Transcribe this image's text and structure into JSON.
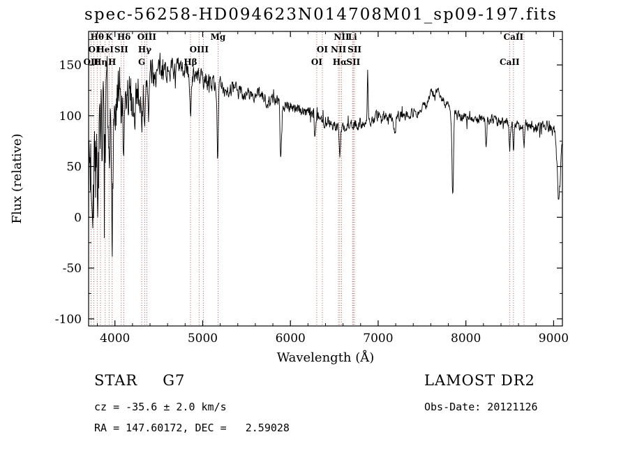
{
  "chart_data": {
    "type": "line",
    "title": "spec-56258-HD094623N014708M01_sp09-197.fits",
    "xlabel": "Wavelength (Å)",
    "ylabel": "Flux (relative)",
    "xlim": [
      3700,
      9100
    ],
    "ylim": [
      -107,
      183
    ],
    "x_ticks": [
      4000,
      5000,
      6000,
      7000,
      8000,
      9000
    ],
    "y_ticks": [
      -100,
      -50,
      0,
      50,
      100,
      150
    ],
    "grid": false,
    "legend": null,
    "colors": {
      "spectrum": "#000000",
      "feature_lines": "#a14a4a",
      "axes": "#000000",
      "text": "#000000",
      "background": "#ffffff"
    },
    "spectral_lines": [
      {
        "wavelength": 3727,
        "label": "OII",
        "row": 3
      },
      {
        "wavelength": 3760,
        "label": "OI",
        "row": 2
      },
      {
        "wavelength": 3798,
        "label": "Hθ",
        "row": 1
      },
      {
        "wavelength": 3835,
        "label": "Hη",
        "row": 3
      },
      {
        "wavelength": 3889,
        "label": "HeI",
        "row": 2
      },
      {
        "wavelength": 3933,
        "label": "K",
        "row": 1
      },
      {
        "wavelength": 3968,
        "label": "H",
        "row": 3
      },
      {
        "wavelength": 4072,
        "label": "SII",
        "row": 2
      },
      {
        "wavelength": 4102,
        "label": "Hδ",
        "row": 1
      },
      {
        "wavelength": 4305,
        "label": "G",
        "row": 3
      },
      {
        "wavelength": 4340,
        "label": "Hγ",
        "row": 2
      },
      {
        "wavelength": 4363,
        "label": "OIII",
        "row": 1
      },
      {
        "wavelength": 4861,
        "label": "Hβ",
        "row": 3
      },
      {
        "wavelength": 4959,
        "label": "OIII",
        "row": 2
      },
      {
        "wavelength": 5007,
        "label": "",
        "row": 0
      },
      {
        "wavelength": 5175,
        "label": "Mg",
        "row": 1
      },
      {
        "wavelength": 6300,
        "label": "OI",
        "row": 3
      },
      {
        "wavelength": 6364,
        "label": "OI",
        "row": 2
      },
      {
        "wavelength": 6548,
        "label": "NII",
        "row": 2
      },
      {
        "wavelength": 6563,
        "label": "Hα",
        "row": 3
      },
      {
        "wavelength": 6583,
        "label": "NII",
        "row": 1
      },
      {
        "wavelength": 6708,
        "label": "Li",
        "row": 1
      },
      {
        "wavelength": 6717,
        "label": "SII",
        "row": 3
      },
      {
        "wavelength": 6731,
        "label": "SII",
        "row": 2
      },
      {
        "wavelength": 8498,
        "label": "CaII",
        "row": 3
      },
      {
        "wavelength": 8542,
        "label": "CaII",
        "row": 1
      },
      {
        "wavelength": 8662,
        "label": "",
        "row": 0
      }
    ],
    "continuum_points": [
      [
        3700,
        45
      ],
      [
        3760,
        65
      ],
      [
        3820,
        80
      ],
      [
        3900,
        92
      ],
      [
        4000,
        100
      ],
      [
        4100,
        108
      ],
      [
        4200,
        118
      ],
      [
        4300,
        130
      ],
      [
        4400,
        138
      ],
      [
        4500,
        143
      ],
      [
        4600,
        146
      ],
      [
        4700,
        145
      ],
      [
        4800,
        144
      ],
      [
        4900,
        140
      ],
      [
        5000,
        136
      ],
      [
        5100,
        133
      ],
      [
        5250,
        127
      ],
      [
        5400,
        124
      ],
      [
        5600,
        119
      ],
      [
        5800,
        115
      ],
      [
        6000,
        110
      ],
      [
        6200,
        103
      ],
      [
        6350,
        97
      ],
      [
        6500,
        91
      ],
      [
        6600,
        88
      ],
      [
        6750,
        91
      ],
      [
        6900,
        96
      ],
      [
        7100,
        99
      ],
      [
        7300,
        101
      ],
      [
        7500,
        105
      ],
      [
        7600,
        120
      ],
      [
        7680,
        123
      ],
      [
        7760,
        112
      ],
      [
        7900,
        100
      ],
      [
        8100,
        98
      ],
      [
        8300,
        96
      ],
      [
        8500,
        93
      ],
      [
        8700,
        90
      ],
      [
        9000,
        86
      ],
      [
        9100,
        84
      ]
    ],
    "absorption_features": [
      {
        "center": 3798,
        "depth": 55,
        "width": 7
      },
      {
        "center": 3835,
        "depth": 55,
        "width": 7
      },
      {
        "center": 3889,
        "depth": 60,
        "width": 7
      },
      {
        "center": 3933,
        "depth": 85,
        "width": 8
      },
      {
        "center": 3968,
        "depth": 85,
        "width": 8
      },
      {
        "center": 4102,
        "depth": 70,
        "width": 8
      },
      {
        "center": 4227,
        "depth": 35,
        "width": 6
      },
      {
        "center": 4305,
        "depth": 30,
        "width": 10
      },
      {
        "center": 4340,
        "depth": 55,
        "width": 7
      },
      {
        "center": 4383,
        "depth": 30,
        "width": 6
      },
      {
        "center": 4861,
        "depth": 45,
        "width": 7
      },
      {
        "center": 5172,
        "depth": 75,
        "width": 7
      },
      {
        "center": 5890,
        "depth": 55,
        "width": 8
      },
      {
        "center": 6280,
        "depth": 18,
        "width": 8
      },
      {
        "center": 6563,
        "depth": 30,
        "width": 7
      },
      {
        "center": 6880,
        "depth": -45,
        "width": 5
      },
      {
        "center": 7190,
        "depth": 22,
        "width": 9
      },
      {
        "center": 7850,
        "depth": 84,
        "width": 9
      },
      {
        "center": 8230,
        "depth": 26,
        "width": 7
      },
      {
        "center": 8498,
        "depth": 26,
        "width": 6
      },
      {
        "center": 8542,
        "depth": 30,
        "width": 6
      },
      {
        "center": 8662,
        "depth": 26,
        "width": 6
      },
      {
        "center": 9060,
        "depth": 70,
        "width": 18
      }
    ],
    "noise_profile": [
      [
        3700,
        80
      ],
      [
        3760,
        72
      ],
      [
        3820,
        60
      ],
      [
        3900,
        52
      ],
      [
        4000,
        42
      ],
      [
        4150,
        30
      ],
      [
        4300,
        20
      ],
      [
        4500,
        14
      ],
      [
        4700,
        11
      ],
      [
        5000,
        9
      ],
      [
        5500,
        8
      ],
      [
        6000,
        7
      ],
      [
        6500,
        6
      ],
      [
        7000,
        5.5
      ],
      [
        7500,
        5.5
      ],
      [
        8000,
        5
      ],
      [
        8600,
        6
      ],
      [
        9000,
        7
      ],
      [
        9100,
        9
      ]
    ],
    "noise_seed": 7
  },
  "footer": {
    "left": {
      "class_name": "STAR",
      "subclass": "G7",
      "cz_line": "cz = -35.6 ± 2.0 km/s",
      "radec_line": "RA = 147.60172, DEC =   2.59028"
    },
    "right": {
      "survey": "LAMOST DR2",
      "obsdate_line": "Obs-Date: 20121126"
    }
  }
}
